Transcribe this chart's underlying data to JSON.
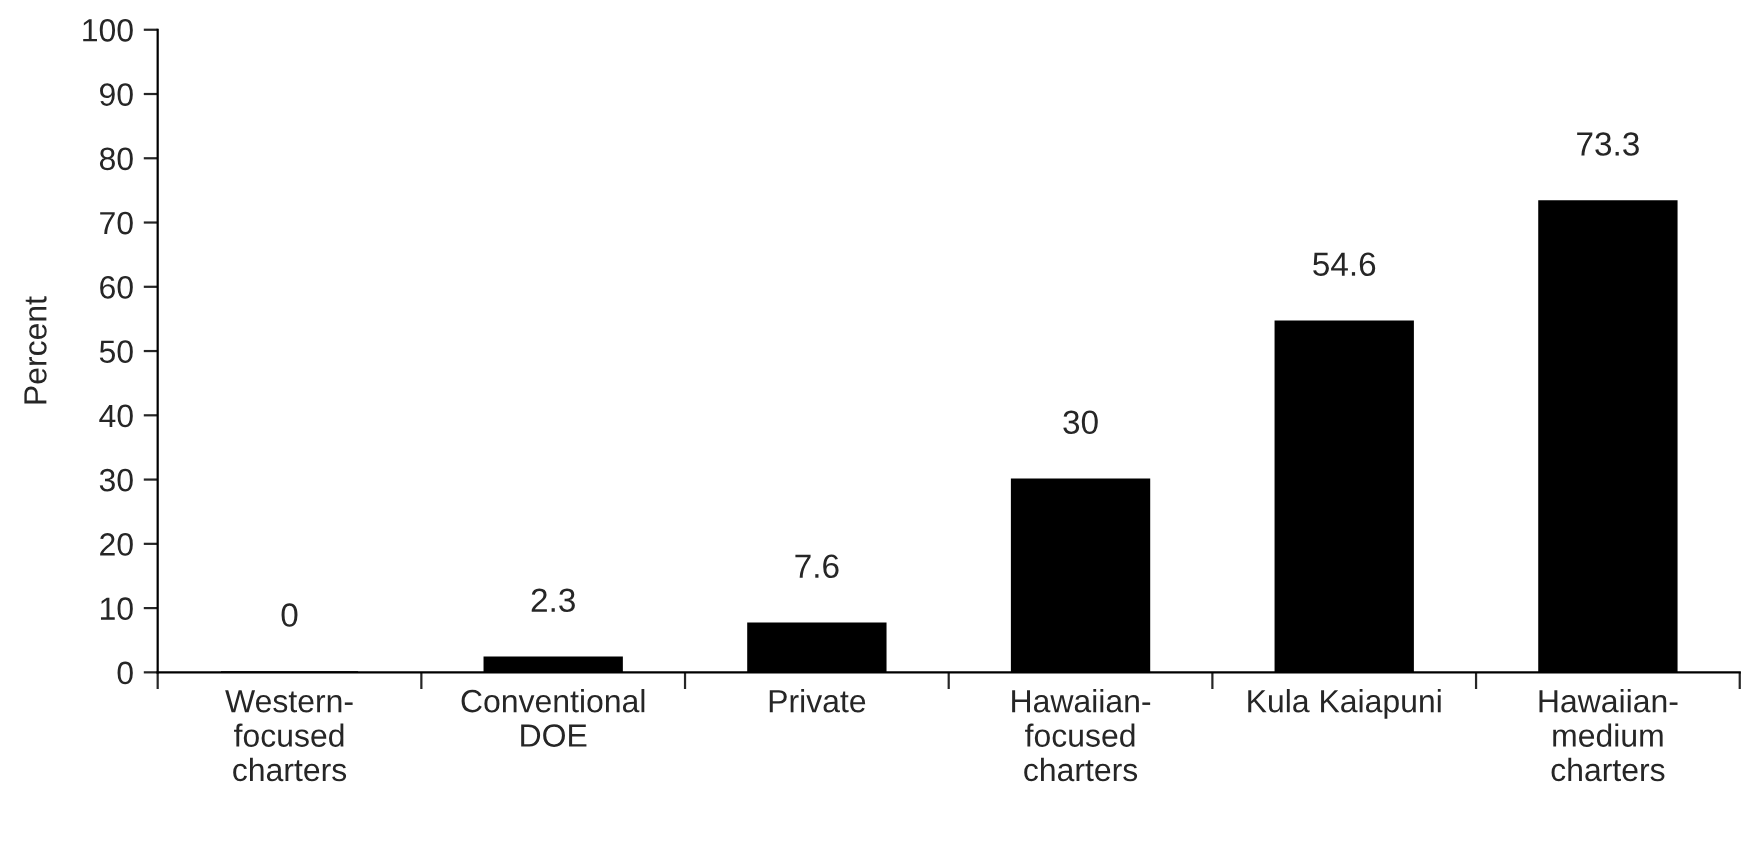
{
  "chart_data": {
    "type": "bar",
    "ylabel": "Percent",
    "categories": [
      "Western-\nfocused\ncharters",
      "Conventional\nDOE",
      "Private",
      "Hawaiian-\nfocused\ncharters",
      "Kula Kaiapuni",
      "Hawaiian-\nmedium\ncharters"
    ],
    "values": [
      0,
      2.3,
      7.6,
      30,
      54.6,
      73.3
    ],
    "color": "#000000",
    "ylim": [
      0,
      100
    ],
    "yticks": [
      0,
      10,
      20,
      30,
      40,
      50,
      60,
      70,
      80,
      90,
      100
    ],
    "data_labels": true,
    "grid": false,
    "legend": false
  }
}
